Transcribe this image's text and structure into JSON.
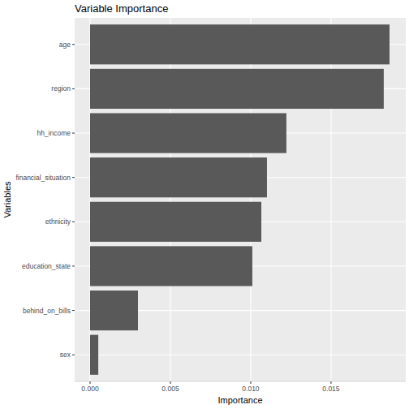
{
  "chart_data": {
    "type": "bar",
    "orientation": "horizontal",
    "title": "Variable Importance",
    "x_label": "Importance",
    "y_label": "Variables",
    "categories": [
      "age",
      "region",
      "hh_income",
      "financial_situation",
      "ethnicity",
      "education_state",
      "behind_on_bills",
      "sex"
    ],
    "values": [
      0.01864,
      0.01828,
      0.01222,
      0.01101,
      0.01066,
      0.0101,
      0.00298,
      0.00051
    ],
    "color": "#595959",
    "xlim": [
      -0.00096,
      0.01965
    ],
    "xticks": [
      {
        "value": 0,
        "label": "0.000"
      },
      {
        "value": 0.005,
        "label": "0.005"
      },
      {
        "value": 0.01,
        "label": "0.010"
      },
      {
        "value": 0.015,
        "label": "0.015"
      }
    ],
    "grid": true
  }
}
